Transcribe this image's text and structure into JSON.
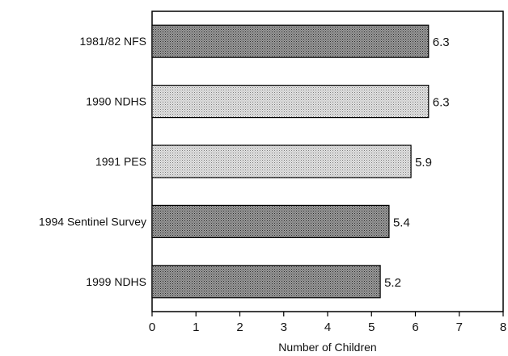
{
  "chart_data": {
    "type": "bar",
    "orientation": "horizontal",
    "categories": [
      "1981/82 NFS",
      "1990 NDHS",
      "1991 PES",
      "1994 Sentinel Survey",
      "1999 NDHS"
    ],
    "values": [
      6.3,
      6.3,
      5.9,
      5.4,
      5.2
    ],
    "value_labels": [
      "6.3",
      "6.3",
      "5.9",
      "5.4",
      "5.2"
    ],
    "bar_shades": [
      "dark",
      "light",
      "light",
      "dark",
      "dark"
    ],
    "xlabel": "Number of Children",
    "xlim": [
      0,
      8
    ],
    "xticks": [
      "0",
      "1",
      "2",
      "3",
      "4",
      "5",
      "6",
      "7",
      "8"
    ],
    "grid": false,
    "colors": {
      "dark": "#8a8a8a",
      "light": "#d4d4d4",
      "outline": "#000000"
    }
  }
}
